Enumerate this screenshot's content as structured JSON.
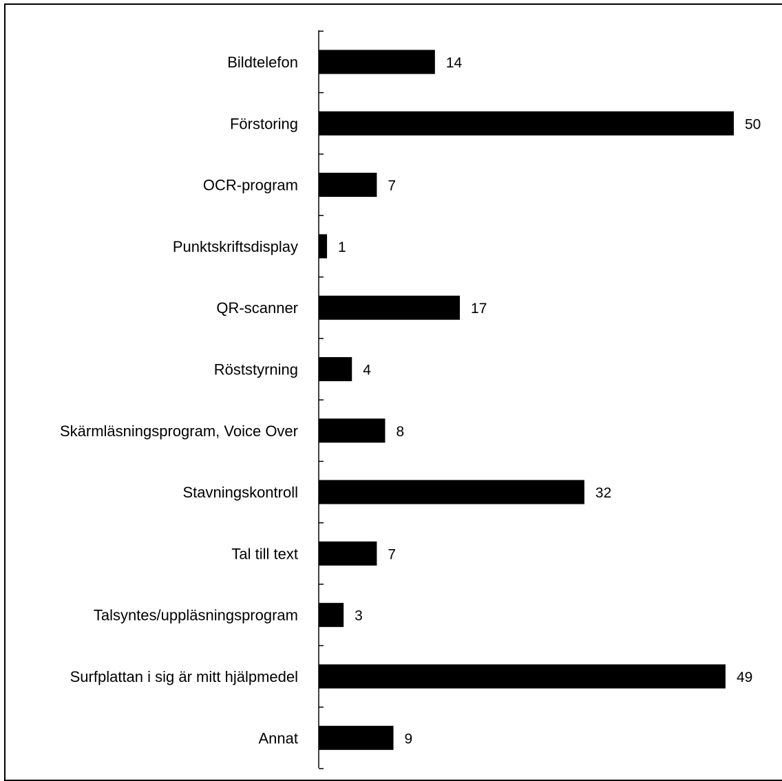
{
  "chart_data": {
    "type": "bar",
    "orientation": "horizontal",
    "categories": [
      "Bildtelefon",
      "Förstoring",
      "OCR-program",
      "Punktskriftsdisplay",
      "QR-scanner",
      "Röststyrning",
      "Skärmläsningsprogram, Voice Over",
      "Stavningskontroll",
      "Tal till text",
      "Talsyntes/uppläsningsprogram",
      "Surfplattan i sig är mitt hjälpmedel",
      "Annat"
    ],
    "values": [
      14,
      50,
      7,
      1,
      17,
      4,
      8,
      32,
      7,
      3,
      49,
      9
    ],
    "value_labels": [
      "14",
      "50",
      "7",
      "1",
      "17",
      "4",
      "8",
      "32",
      "7",
      "3",
      "49",
      "9"
    ],
    "title": "",
    "xlabel": "",
    "ylabel": "",
    "xlim": [
      0,
      50
    ],
    "grid": false,
    "legend": "none",
    "bar_color": "#000000"
  }
}
